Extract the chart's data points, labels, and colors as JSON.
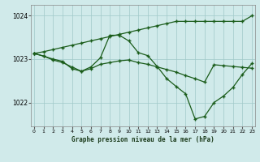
{
  "title": "Graphe pression niveau de la mer (hPa)",
  "bg_color": "#d0eaea",
  "grid_color": "#a0c8c8",
  "line_color": "#1a5c1a",
  "hours": [
    0,
    1,
    2,
    3,
    4,
    5,
    6,
    7,
    8,
    9,
    10,
    11,
    12,
    13,
    14,
    15,
    16,
    17,
    18,
    19,
    20,
    21,
    22,
    23
  ],
  "s1": [
    1023.13,
    1023.17,
    1023.22,
    1023.27,
    1023.32,
    1023.37,
    1023.42,
    1023.47,
    1023.52,
    1023.57,
    1023.62,
    1023.67,
    1023.72,
    1023.77,
    1023.82,
    1023.87,
    1023.87,
    1023.87,
    1023.87,
    1023.87,
    1023.87,
    1023.87,
    1023.87,
    1024.0
  ],
  "s2": [
    1023.13,
    1023.07,
    1023.0,
    1022.95,
    1022.78,
    1022.72,
    1022.82,
    1023.03,
    1023.55,
    1023.55,
    1023.42,
    1023.15,
    1023.08,
    1022.83,
    1022.55,
    1022.37,
    1022.2,
    1021.62,
    1021.68,
    1022.0,
    1022.15,
    1022.35,
    1022.65,
    1022.9
  ],
  "s3": [
    1023.13,
    1023.07,
    1022.98,
    1022.92,
    1022.82,
    1022.72,
    1022.78,
    1022.88,
    1022.92,
    1022.96,
    1022.98,
    1022.92,
    1022.88,
    1022.82,
    1022.76,
    1022.7,
    1022.62,
    1022.55,
    1022.47,
    1022.87,
    1022.85,
    1022.83,
    1022.81,
    1022.79
  ],
  "yticks": [
    1022,
    1023,
    1024
  ],
  "ylim": [
    1021.45,
    1024.25
  ],
  "xlim": [
    -0.3,
    23.3
  ]
}
